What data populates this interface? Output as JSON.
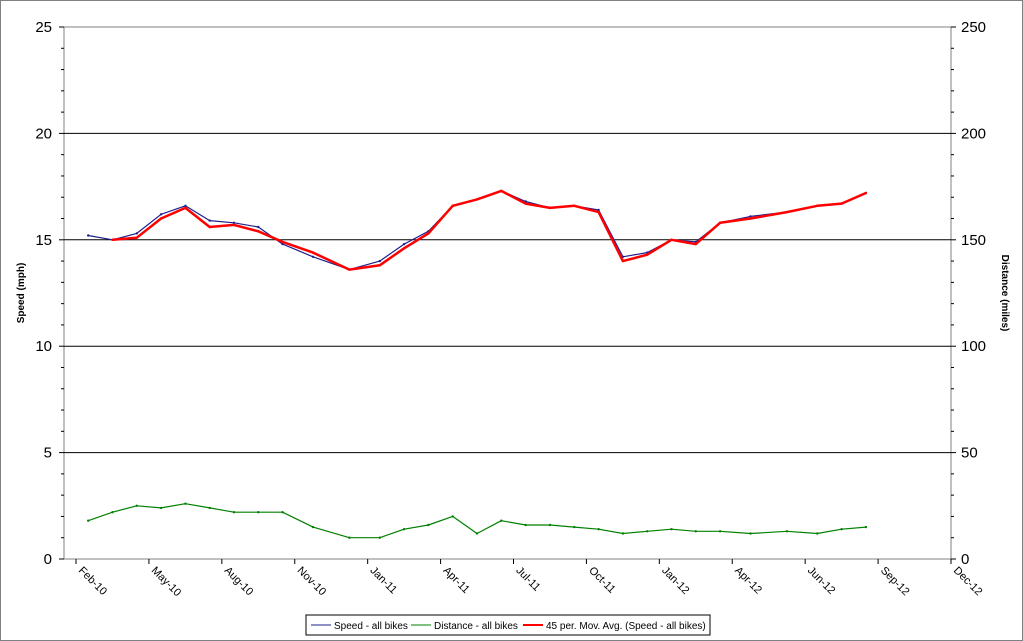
{
  "chart_data": {
    "type": "line",
    "ylabel": "Speed (mph)",
    "y2label": "Distance (miles)",
    "ylim": [
      0,
      25
    ],
    "y2lim": [
      0,
      250
    ],
    "yticks": [
      "0",
      "5",
      "10",
      "15",
      "20",
      "25"
    ],
    "y2ticks": [
      "0",
      "50",
      "100",
      "150",
      "200",
      "250"
    ],
    "xticks": [
      "Feb-10",
      "May-10",
      "Aug-10",
      "Nov-10",
      "Jan-11",
      "Apr-11",
      "Jul-11",
      "Oct-11",
      "Jan-12",
      "Apr-12",
      "Jun-12",
      "Sep-12",
      "Dec-12"
    ],
    "grid": "horizontal",
    "legend_position": "bottom",
    "series": [
      {
        "name": "Speed - all bikes",
        "axis": "left",
        "color": "#1f1f8f",
        "x": [
          "Feb-10",
          "Mar-10",
          "Apr-10",
          "May-10",
          "Jun-10",
          "Jul-10",
          "Aug-10",
          "Sep-10",
          "Oct-10",
          "Nov-10",
          "Dec-10",
          "Jan-11",
          "Feb-11",
          "Mar-11",
          "Apr-11",
          "May-11",
          "Jun-11",
          "Jul-11",
          "Aug-11",
          "Sep-11",
          "Oct-11",
          "Nov-11",
          "Dec-11",
          "Jan-12",
          "Feb-12",
          "Mar-12",
          "Apr-12",
          "May-12",
          "Jun-12",
          "Jul-12",
          "Aug-12"
        ],
        "values": [
          15.2,
          15.0,
          15.3,
          16.2,
          16.6,
          15.9,
          15.8,
          15.6,
          14.8,
          14.2,
          13.6,
          14.0,
          14.8,
          15.4,
          16.6,
          16.9,
          17.3,
          16.8,
          16.5,
          16.6,
          16.4,
          14.2,
          14.4,
          15.0,
          14.9,
          15.8,
          16.1,
          16.3,
          16.6,
          16.7,
          17.2
        ]
      },
      {
        "name": "Distance - all bikes",
        "axis": "right",
        "color": "#008000",
        "x": [
          "Feb-10",
          "Mar-10",
          "Apr-10",
          "May-10",
          "Jun-10",
          "Jul-10",
          "Aug-10",
          "Sep-10",
          "Oct-10",
          "Nov-10",
          "Dec-10",
          "Jan-11",
          "Feb-11",
          "Mar-11",
          "Apr-11",
          "May-11",
          "Jun-11",
          "Jul-11",
          "Aug-11",
          "Sep-11",
          "Oct-11",
          "Nov-11",
          "Dec-11",
          "Jan-12",
          "Feb-12",
          "Mar-12",
          "Apr-12",
          "May-12",
          "Jun-12",
          "Jul-12",
          "Aug-12"
        ],
        "values": [
          18,
          22,
          25,
          24,
          26,
          24,
          22,
          22,
          22,
          15,
          10,
          10,
          14,
          16,
          20,
          12,
          18,
          16,
          16,
          15,
          14,
          12,
          13,
          14,
          13,
          13,
          12,
          13,
          12,
          14,
          15
        ]
      },
      {
        "name": "45 per. Mov. Avg. (Speed - all bikes)",
        "axis": "left",
        "color": "#ff0000",
        "x": [
          "Mar-10",
          "Apr-10",
          "May-10",
          "Jun-10",
          "Jul-10",
          "Aug-10",
          "Sep-10",
          "Oct-10",
          "Nov-10",
          "Dec-10",
          "Jan-11",
          "Feb-11",
          "Mar-11",
          "Apr-11",
          "May-11",
          "Jun-11",
          "Jul-11",
          "Aug-11",
          "Sep-11",
          "Oct-11",
          "Nov-11",
          "Dec-11",
          "Jan-12",
          "Feb-12",
          "Mar-12",
          "Apr-12",
          "May-12",
          "Jun-12",
          "Jul-12",
          "Aug-12"
        ],
        "values": [
          15.0,
          15.1,
          16.0,
          16.5,
          15.6,
          15.7,
          15.4,
          14.9,
          14.4,
          13.6,
          13.8,
          14.6,
          15.3,
          16.6,
          16.9,
          17.3,
          16.7,
          16.5,
          16.6,
          16.3,
          14.0,
          14.3,
          15.0,
          14.8,
          15.8,
          16.0,
          16.3,
          16.6,
          16.7,
          17.2
        ]
      }
    ]
  }
}
